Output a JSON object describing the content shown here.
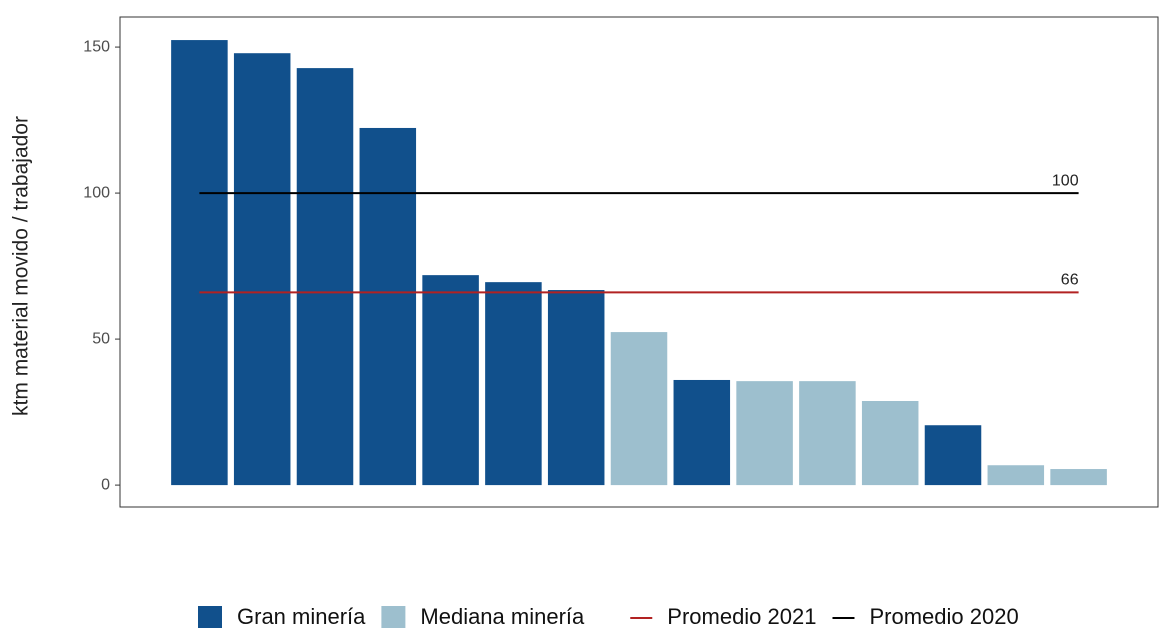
{
  "chart_data": {
    "type": "bar",
    "y_label": "ktm material movido / trabajador",
    "categories": [
      null,
      null,
      null,
      null,
      null,
      null,
      null,
      null,
      null,
      null,
      null,
      null,
      null,
      null,
      null
    ],
    "series": [
      {
        "name": "Gran minería",
        "color": "#11508c",
        "values": [
          152.4,
          147.9,
          142.8,
          122.3,
          71.9,
          69.5,
          66.8,
          null,
          36.0,
          null,
          null,
          null,
          20.5,
          null,
          null
        ]
      },
      {
        "name": "Mediana minería",
        "color": "#9dbfce",
        "values": [
          null,
          null,
          null,
          null,
          null,
          null,
          null,
          52.4,
          null,
          35.6,
          35.6,
          28.8,
          null,
          6.8,
          5.5
        ]
      }
    ],
    "reference_lines": [
      {
        "name": "Promedio 2021",
        "color": "#b22222",
        "value": 66
      },
      {
        "name": "Promedio 2020",
        "color": "#000000",
        "value": 100
      }
    ],
    "ylim": [
      -7.5,
      160.3
    ],
    "yticks": [
      0,
      50,
      100,
      150
    ]
  }
}
